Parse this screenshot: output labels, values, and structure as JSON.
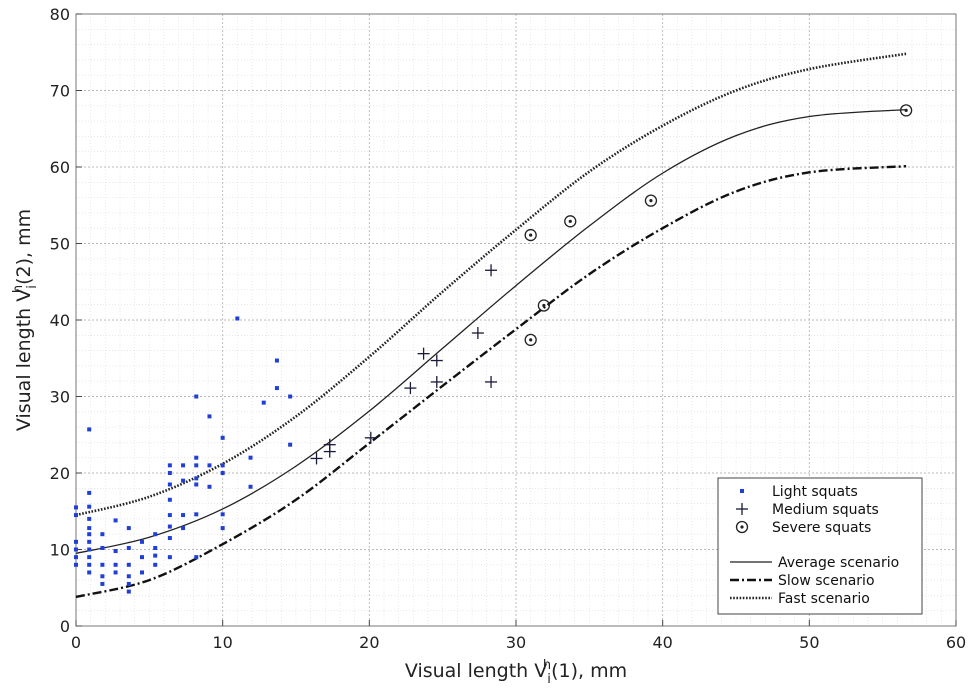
{
  "chart_data": {
    "type": "scatter",
    "title": "",
    "xlabel": {
      "main": "Visual length V",
      "sup": "h",
      "sub": "i",
      "tail": "(1), mm"
    },
    "ylabel": {
      "main": "Visual length V",
      "sup": "h",
      "sub": "i",
      "tail": "(2), mm"
    },
    "xlim": [
      0,
      60
    ],
    "ylim": [
      0,
      80
    ],
    "x_ticks": [
      "0",
      "10",
      "20",
      "30",
      "40",
      "50",
      "60"
    ],
    "y_ticks": [
      "0",
      "10",
      "20",
      "30",
      "40",
      "50",
      "60",
      "70",
      "80"
    ],
    "grid": true,
    "minor_grid": true,
    "legend_position": "bottom-right",
    "series": [
      {
        "name": "Light squats",
        "marker": "dot",
        "color": "#1f3fd6",
        "points": [
          [
            0,
            15.5
          ],
          [
            0,
            14.5
          ],
          [
            0,
            11
          ],
          [
            0,
            10
          ],
          [
            0,
            9
          ],
          [
            0,
            8
          ],
          [
            0.9,
            25.7
          ],
          [
            0.9,
            17.4
          ],
          [
            0.9,
            15.6
          ],
          [
            0.9,
            14
          ],
          [
            0.9,
            12.8
          ],
          [
            0.9,
            12
          ],
          [
            0.9,
            11
          ],
          [
            0.9,
            10
          ],
          [
            0.9,
            9
          ],
          [
            0.9,
            8
          ],
          [
            0.9,
            7
          ],
          [
            1.8,
            12
          ],
          [
            1.8,
            10.2
          ],
          [
            1.8,
            8
          ],
          [
            1.8,
            6.5
          ],
          [
            1.8,
            5.5
          ],
          [
            2.7,
            13.8
          ],
          [
            2.7,
            9.8
          ],
          [
            2.7,
            8
          ],
          [
            2.7,
            7
          ],
          [
            3.6,
            12.8
          ],
          [
            3.6,
            10.2
          ],
          [
            3.6,
            8
          ],
          [
            3.6,
            6.5
          ],
          [
            3.6,
            5.5
          ],
          [
            3.6,
            4.5
          ],
          [
            4.5,
            11
          ],
          [
            4.5,
            9
          ],
          [
            4.5,
            7
          ],
          [
            5.4,
            12
          ],
          [
            5.4,
            10.2
          ],
          [
            5.4,
            9.2
          ],
          [
            5.4,
            8
          ],
          [
            6.4,
            21
          ],
          [
            6.4,
            20
          ],
          [
            6.4,
            18.5
          ],
          [
            6.4,
            16.5
          ],
          [
            6.4,
            14.5
          ],
          [
            6.4,
            13
          ],
          [
            6.4,
            11.5
          ],
          [
            6.4,
            9
          ],
          [
            7.3,
            21
          ],
          [
            7.3,
            19
          ],
          [
            7.3,
            14.5
          ],
          [
            7.3,
            12.8
          ],
          [
            8.2,
            30
          ],
          [
            8.2,
            22
          ],
          [
            8.2,
            21
          ],
          [
            8.2,
            19.3
          ],
          [
            8.2,
            18.5
          ],
          [
            8.2,
            14.6
          ],
          [
            8.2,
            9
          ],
          [
            9.1,
            27.4
          ],
          [
            9.1,
            21
          ],
          [
            9.1,
            18.2
          ],
          [
            10,
            24.6
          ],
          [
            10,
            21
          ],
          [
            10,
            20
          ],
          [
            10,
            14.6
          ],
          [
            10,
            12.8
          ],
          [
            11,
            40.2
          ],
          [
            11.9,
            22
          ],
          [
            11.9,
            18.2
          ],
          [
            12.8,
            29.2
          ],
          [
            13.7,
            34.7
          ],
          [
            13.7,
            31.1
          ],
          [
            14.6,
            30
          ],
          [
            14.6,
            23.7
          ]
        ]
      },
      {
        "name": "Medium squats",
        "marker": "plus",
        "color": "#1a1a3a",
        "points": [
          [
            16.4,
            21.9
          ],
          [
            17.3,
            23.7
          ],
          [
            17.3,
            22.8
          ],
          [
            20.1,
            24.6
          ],
          [
            22.8,
            31.1
          ],
          [
            23.7,
            35.6
          ],
          [
            24.6,
            34.7
          ],
          [
            24.6,
            31.9
          ],
          [
            27.4,
            38.3
          ],
          [
            28.3,
            46.5
          ],
          [
            28.3,
            31.9
          ]
        ]
      },
      {
        "name": "Severe squats",
        "marker": "circle-dot",
        "color": "#222222",
        "points": [
          [
            31,
            51.1
          ],
          [
            31,
            37.4
          ],
          [
            31.9,
            41.9
          ],
          [
            33.7,
            52.9
          ],
          [
            39.2,
            55.6
          ],
          [
            56.6,
            67.4
          ]
        ]
      }
    ],
    "curves": [
      {
        "name": "Average scenario",
        "style": "solid",
        "color": "#222222",
        "points": [
          [
            0,
            9.5
          ],
          [
            5,
            11.6
          ],
          [
            10,
            15.3
          ],
          [
            15,
            20.9
          ],
          [
            20,
            28.1
          ],
          [
            25,
            36.3
          ],
          [
            30,
            44.5
          ],
          [
            35,
            52.3
          ],
          [
            40,
            59.2
          ],
          [
            45,
            64.1
          ],
          [
            50,
            66.6
          ],
          [
            56.6,
            67.5
          ]
        ]
      },
      {
        "name": "Slow scenario",
        "style": "dashdot",
        "color": "#111111",
        "points": [
          [
            0,
            3.8
          ],
          [
            5,
            6
          ],
          [
            10,
            10.7
          ],
          [
            15,
            16.5
          ],
          [
            20,
            23.9
          ],
          [
            25,
            31.4
          ],
          [
            30,
            38.8
          ],
          [
            35,
            46
          ],
          [
            40,
            52
          ],
          [
            45,
            56.8
          ],
          [
            50,
            59.3
          ],
          [
            56.6,
            60.1
          ]
        ]
      },
      {
        "name": "Fast scenario",
        "style": "dotted",
        "color": "#222222",
        "points": [
          [
            0,
            14.5
          ],
          [
            5,
            16.9
          ],
          [
            10,
            21.2
          ],
          [
            15,
            27.4
          ],
          [
            20,
            35.2
          ],
          [
            25,
            43.7
          ],
          [
            30,
            51.8
          ],
          [
            35,
            59.4
          ],
          [
            40,
            65.4
          ],
          [
            45,
            70
          ],
          [
            50,
            72.8
          ],
          [
            56.6,
            74.8
          ]
        ]
      }
    ]
  }
}
